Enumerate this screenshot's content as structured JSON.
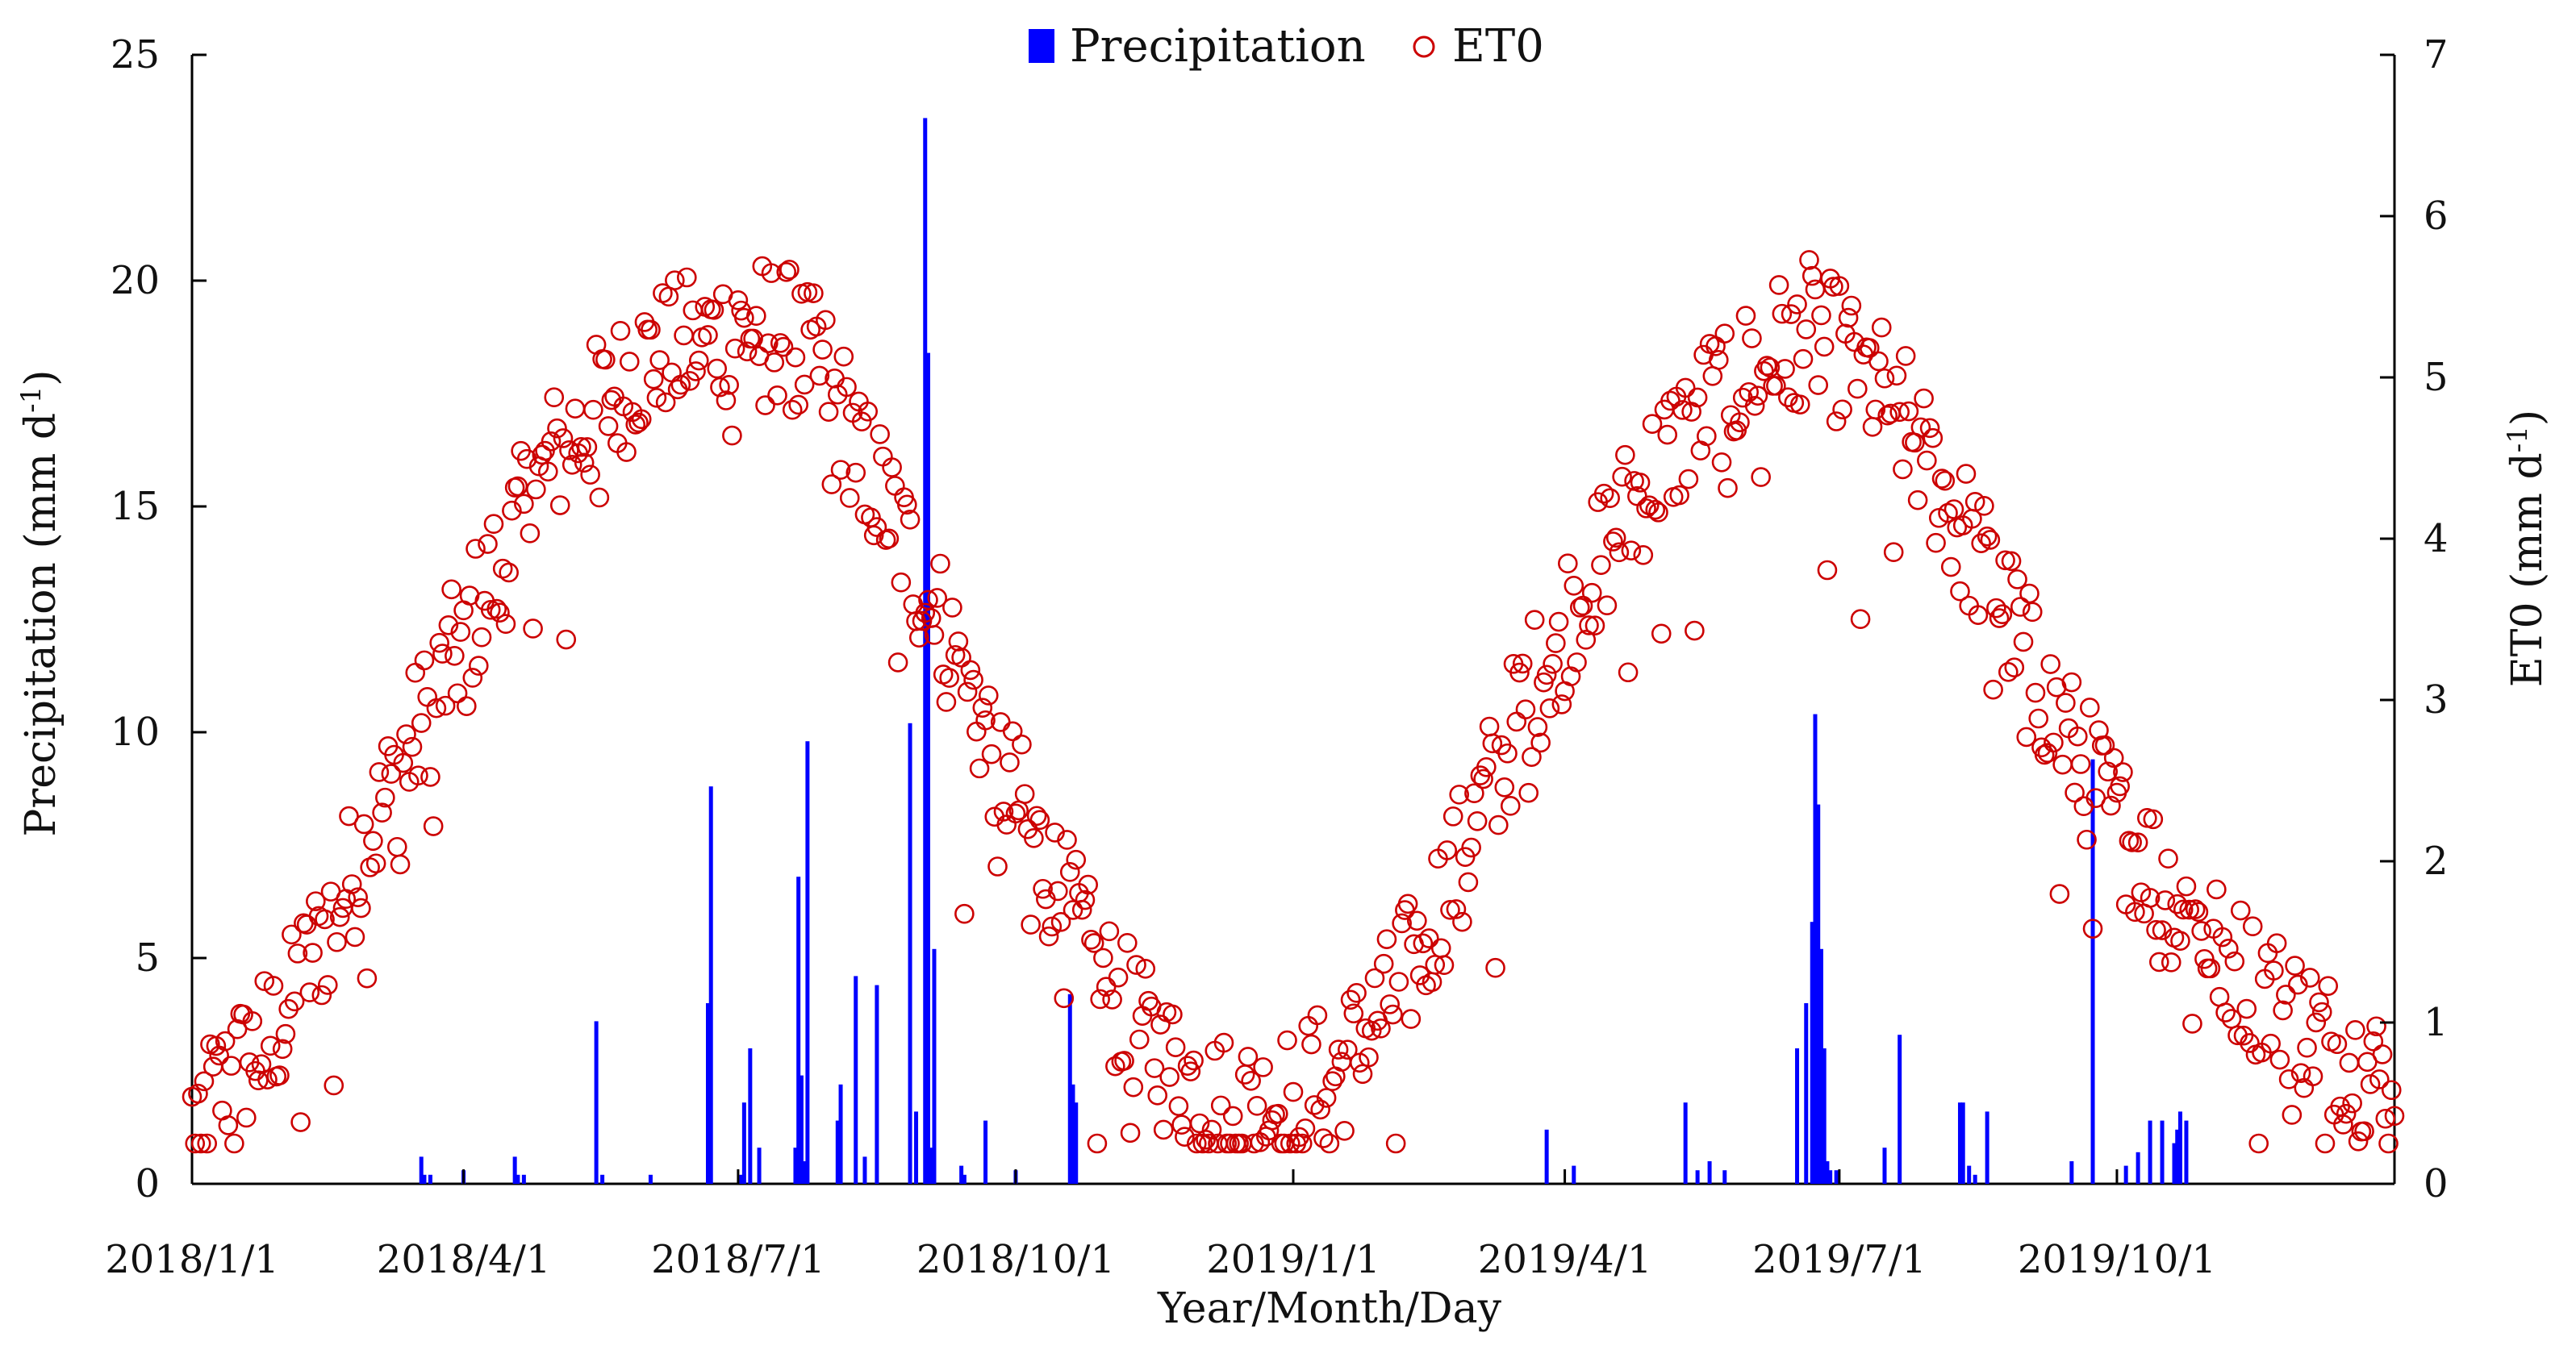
{
  "chart_data": {
    "type": "bar+scatter",
    "xlabel": "Year/Month/Day",
    "ylabel_left": "Precipitation (mm d",
    "ylabel_left_sup": "-1",
    "ylabel_left_tail": ")",
    "ylabel_right": "ET0 (mm d",
    "ylabel_right_sup": "-1",
    "ylabel_right_tail": ")",
    "x_range_days": [
      0,
      730
    ],
    "ylim_left": [
      0,
      25
    ],
    "ylim_right": [
      0,
      7
    ],
    "left_ticks": [
      0,
      5,
      10,
      15,
      20,
      25
    ],
    "right_ticks": [
      0,
      1,
      2,
      3,
      4,
      5,
      6,
      7
    ],
    "x_ticks": [
      {
        "day": 0,
        "label": "2018/1/1"
      },
      {
        "day": 90,
        "label": "2018/4/1"
      },
      {
        "day": 181,
        "label": "2018/7/1"
      },
      {
        "day": 273,
        "label": "2018/10/1"
      },
      {
        "day": 365,
        "label": "2019/1/1"
      },
      {
        "day": 455,
        "label": "2019/4/1"
      },
      {
        "day": 546,
        "label": "2019/7/1"
      },
      {
        "day": 638,
        "label": "2019/10/1"
      }
    ],
    "legend": {
      "placement": "top-center",
      "items": [
        "Precipitation",
        "ET0"
      ]
    },
    "colors": {
      "precipitation": "#0000ff",
      "et0": "#cc0000",
      "axis": "#000000"
    },
    "series": [
      {
        "name": "Precipitation",
        "axis": "left",
        "type": "bar",
        "days": [
          76,
          77,
          79,
          90,
          107,
          108,
          110,
          134,
          136,
          152,
          171,
          172,
          182,
          183,
          185,
          188,
          200,
          201,
          202,
          203,
          204,
          214,
          215,
          220,
          223,
          227,
          238,
          240,
          243,
          244,
          245,
          246,
          255,
          256,
          263,
          273,
          291,
          292,
          293,
          449,
          458,
          495,
          499,
          503,
          508,
          532,
          535,
          537,
          538,
          539,
          540,
          541,
          542,
          543,
          545,
          561,
          566,
          586,
          587,
          589,
          591,
          595,
          623,
          630,
          641,
          645,
          649,
          653,
          657,
          658,
          659,
          661
        ],
        "values": [
          0.6,
          0.2,
          0.2,
          0.3,
          0.6,
          0.2,
          0.2,
          3.6,
          0.2,
          0.2,
          4.0,
          8.8,
          0.2,
          1.8,
          3.0,
          0.8,
          0.8,
          6.8,
          2.4,
          0.5,
          9.8,
          1.4,
          2.2,
          4.6,
          0.6,
          4.4,
          10.2,
          1.6,
          23.6,
          18.4,
          0.8,
          5.2,
          0.4,
          0.2,
          1.4,
          0.3,
          4.2,
          2.2,
          1.8,
          1.2,
          0.4,
          1.8,
          0.3,
          0.5,
          0.3,
          3.0,
          4.0,
          5.8,
          10.4,
          8.4,
          5.2,
          3.0,
          0.5,
          0.3,
          0.3,
          0.8,
          3.3,
          1.8,
          1.8,
          0.4,
          0.2,
          1.6,
          0.5,
          9.4,
          0.4,
          0.7,
          1.4,
          1.4,
          0.9,
          1.2,
          1.6,
          1.4
        ]
      },
      {
        "name": "ET0",
        "axis": "right",
        "type": "scatter",
        "model": {
          "description": "Daily ET0 (mm d-1) values estimated from the plotted scatter; generated by the rendering script from this seasonal envelope plus day-to-day scatter",
          "envelope_days": [
            0,
            30,
            60,
            90,
            120,
            150,
            180,
            195,
            210,
            225,
            240,
            255,
            270,
            285,
            300,
            320,
            340,
            360,
            380,
            400,
            420,
            440,
            460,
            480,
            500,
            520,
            535,
            550,
            565,
            580,
            600,
            620,
            640,
            660,
            680,
            700,
            720,
            730
          ],
          "envelope_values": [
            0.4,
            1.0,
            2.2,
            3.4,
            4.5,
            5.1,
            5.3,
            5.3,
            5.0,
            4.4,
            3.8,
            3.2,
            2.5,
            1.9,
            1.3,
            0.8,
            0.5,
            0.5,
            0.7,
            1.2,
            2.0,
            2.9,
            3.7,
            4.3,
            4.8,
            5.1,
            5.3,
            5.1,
            4.8,
            4.3,
            3.6,
            2.8,
            2.2,
            1.7,
            1.3,
            1.0,
            0.7,
            0.6
          ],
          "scatter_amplitude": 0.45,
          "low_outlier_every": 11,
          "low_outlier_drop": 1.4
        }
      }
    ]
  }
}
